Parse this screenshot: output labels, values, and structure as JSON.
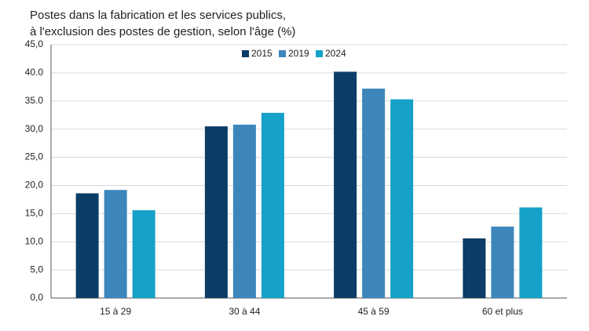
{
  "chart_data": {
    "type": "bar",
    "title": [
      "Postes dans la fabrication et les services publics,",
      "à l'exclusion des postes de gestion, selon l'âge (%)"
    ],
    "categories": [
      "15 à 29",
      "30 à 44",
      "45 à 59",
      "60 et plus"
    ],
    "series": [
      {
        "name": "2015",
        "color": "#0b3d66",
        "values": [
          18.6,
          30.5,
          40.2,
          10.6
        ]
      },
      {
        "name": "2019",
        "color": "#3d86bb",
        "values": [
          19.2,
          30.8,
          37.2,
          12.7
        ]
      },
      {
        "name": "2024",
        "color": "#16a2c8",
        "values": [
          15.6,
          32.9,
          35.3,
          16.1
        ]
      }
    ],
    "ylim": [
      0,
      45
    ],
    "yticks": [
      {
        "value": 0,
        "label": "0,0"
      },
      {
        "value": 5,
        "label": "5,0"
      },
      {
        "value": 10,
        "label": "10,0"
      },
      {
        "value": 15,
        "label": "15,0"
      },
      {
        "value": 20,
        "label": "20,0"
      },
      {
        "value": 25,
        "label": "25,0"
      },
      {
        "value": 30,
        "label": "30,0"
      },
      {
        "value": 35,
        "label": "35.0"
      },
      {
        "value": 40,
        "label": "40.0"
      },
      {
        "value": 45,
        "label": "45,0"
      }
    ],
    "grid": true
  }
}
